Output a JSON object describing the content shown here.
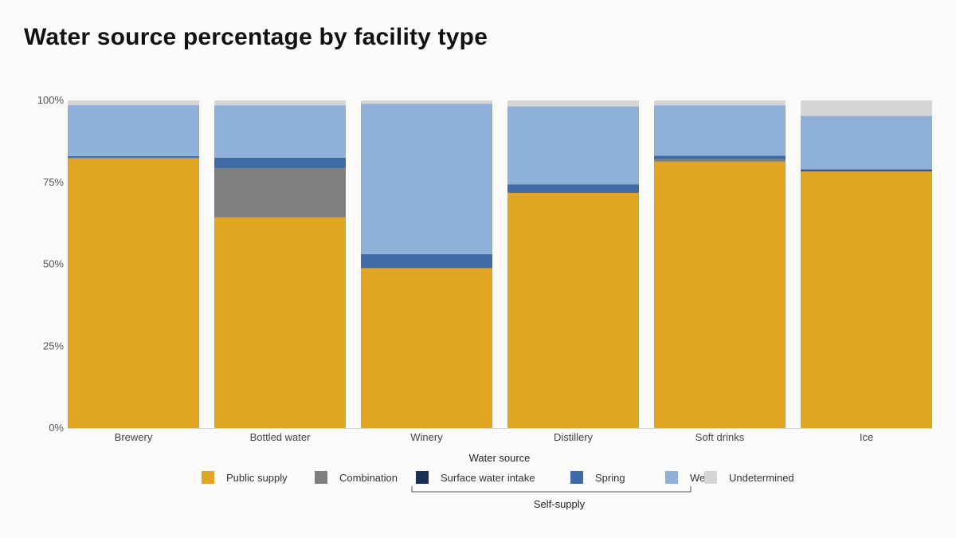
{
  "title": "Water source percentage by facility type",
  "chart_data": {
    "type": "bar",
    "stacked": true,
    "title": "Water source percentage by facility type",
    "categories": [
      "Brewery",
      "Bottled water",
      "Winery",
      "Distillery",
      "Soft drinks",
      "Ice"
    ],
    "ylim": [
      0,
      100
    ],
    "yticks": [
      0,
      25,
      50,
      75,
      100
    ],
    "ytick_labels": [
      "0%",
      "25%",
      "50%",
      "75%",
      "100%"
    ],
    "series": [
      {
        "name": "Public supply",
        "color": "#e1a624",
        "values": [
          82.3,
          64.3,
          48.8,
          71.9,
          81.3,
          78.4
        ]
      },
      {
        "name": "Combination",
        "color": "#7f7f7f",
        "values": [
          0.2,
          15.0,
          0.0,
          0.0,
          0.8,
          0.0
        ]
      },
      {
        "name": "Surface water intake",
        "color": "#1c2f55",
        "values": [
          0.0,
          0.0,
          0.0,
          0.2,
          0.0,
          0.3
        ]
      },
      {
        "name": "Spring",
        "color": "#3e6aa6",
        "values": [
          0.5,
          3.2,
          4.3,
          2.3,
          1.0,
          0.3
        ]
      },
      {
        "name": "Well",
        "color": "#8fb0d8",
        "values": [
          15.6,
          16.0,
          45.9,
          23.8,
          15.4,
          16.3
        ]
      },
      {
        "name": "Undetermined",
        "color": "#d5d5d5",
        "values": [
          1.4,
          1.5,
          1.0,
          1.8,
          1.5,
          4.7
        ]
      }
    ],
    "legend": {
      "title": "Water source",
      "position": "bottom",
      "group_label": "Self-supply"
    }
  }
}
